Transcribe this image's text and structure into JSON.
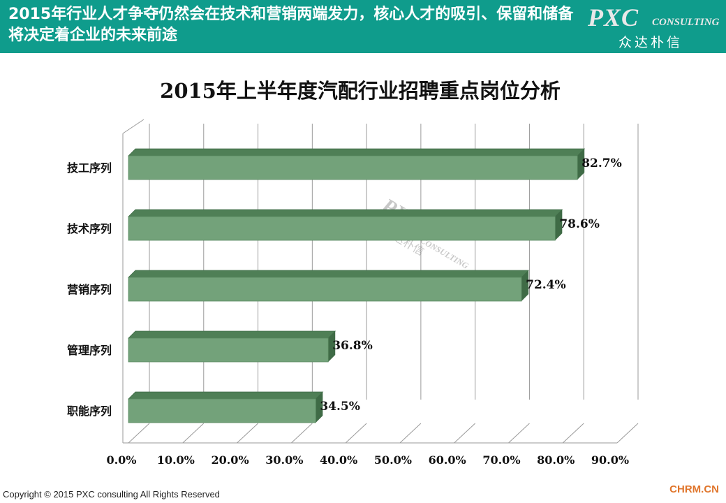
{
  "header": {
    "title": "2015年行业人才争夺仍然会在技术和营销两端发力，核心人才的吸引、保留和储备将决定着企业的未来前途",
    "logo_main": "PXC",
    "logo_sub": "CONSULTING",
    "logo_cn": "众达朴信"
  },
  "watermark": {
    "main": "PXC",
    "sub": "CONSULTING",
    "cn": "众达朴信"
  },
  "chart_data": {
    "type": "bar",
    "orientation": "horizontal",
    "title": "2015年上半年度汽配行业招聘重点岗位分析",
    "categories": [
      "技工序列",
      "技术序列",
      "营销序列",
      "管理序列",
      "职能序列"
    ],
    "values": [
      82.7,
      78.6,
      72.4,
      36.8,
      34.5
    ],
    "value_labels": [
      "82.7%",
      "78.6%",
      "72.4%",
      "36.8%",
      "34.5%"
    ],
    "x_ticks": [
      "0.0%",
      "10.0%",
      "20.0%",
      "30.0%",
      "40.0%",
      "50.0%",
      "60.0%",
      "70.0%",
      "80.0%",
      "90.0%"
    ],
    "xlim": [
      0,
      90
    ],
    "grid": true,
    "style": "3d",
    "bar_color": "#73a27a"
  },
  "footer": {
    "copyright": "Copyright © 2015  PXC consulting All Rights Reserved",
    "brand": "CHRM.CN"
  }
}
